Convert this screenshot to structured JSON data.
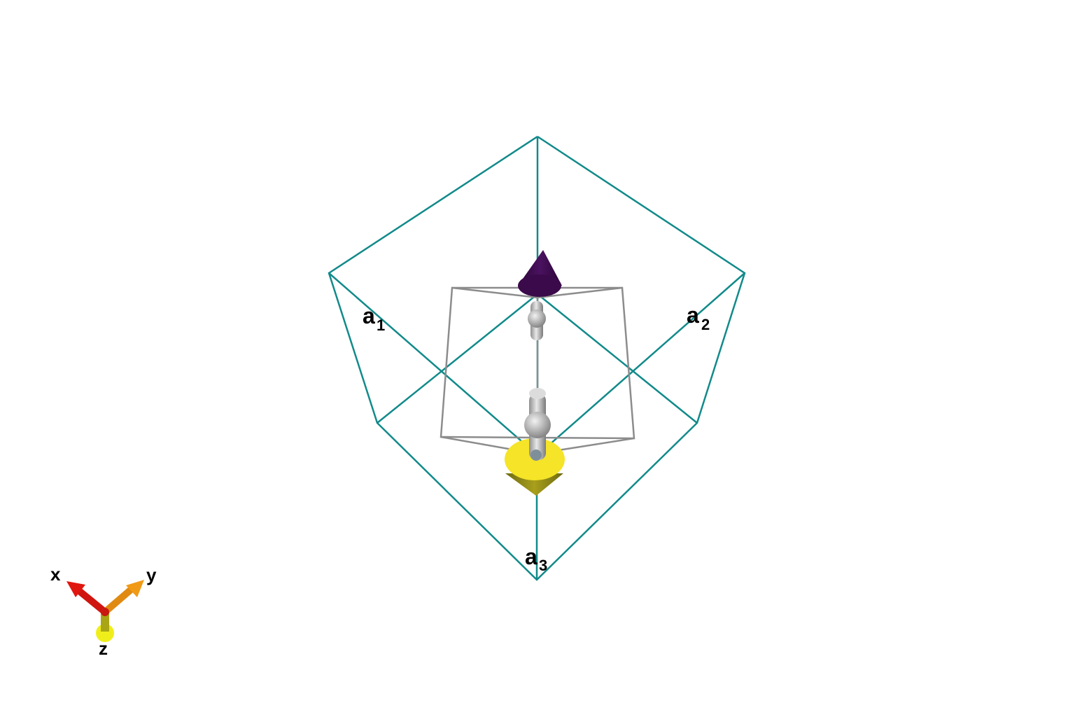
{
  "labels": {
    "a1_main": "a",
    "a1_sub": "1",
    "a2_main": "a",
    "a2_sub": "2",
    "a3_main": "a",
    "a3_sub": "3"
  },
  "axes": {
    "x": "x",
    "y": "y",
    "z": "z"
  },
  "colors": {
    "cell_edges": "#128a8a",
    "inner_frame": "#8c8c8c",
    "upper_spin_cone": "#3b0a4a",
    "lower_spin_cone": "#f5e427",
    "stem": "#c7c7c7",
    "axis_x": "#e0170f",
    "axis_y": "#f09a15",
    "axis_z": "#d8d62a"
  },
  "icons": [
    "axis-triad-icon",
    "spin-arrow-up-icon",
    "spin-arrow-down-icon"
  ]
}
